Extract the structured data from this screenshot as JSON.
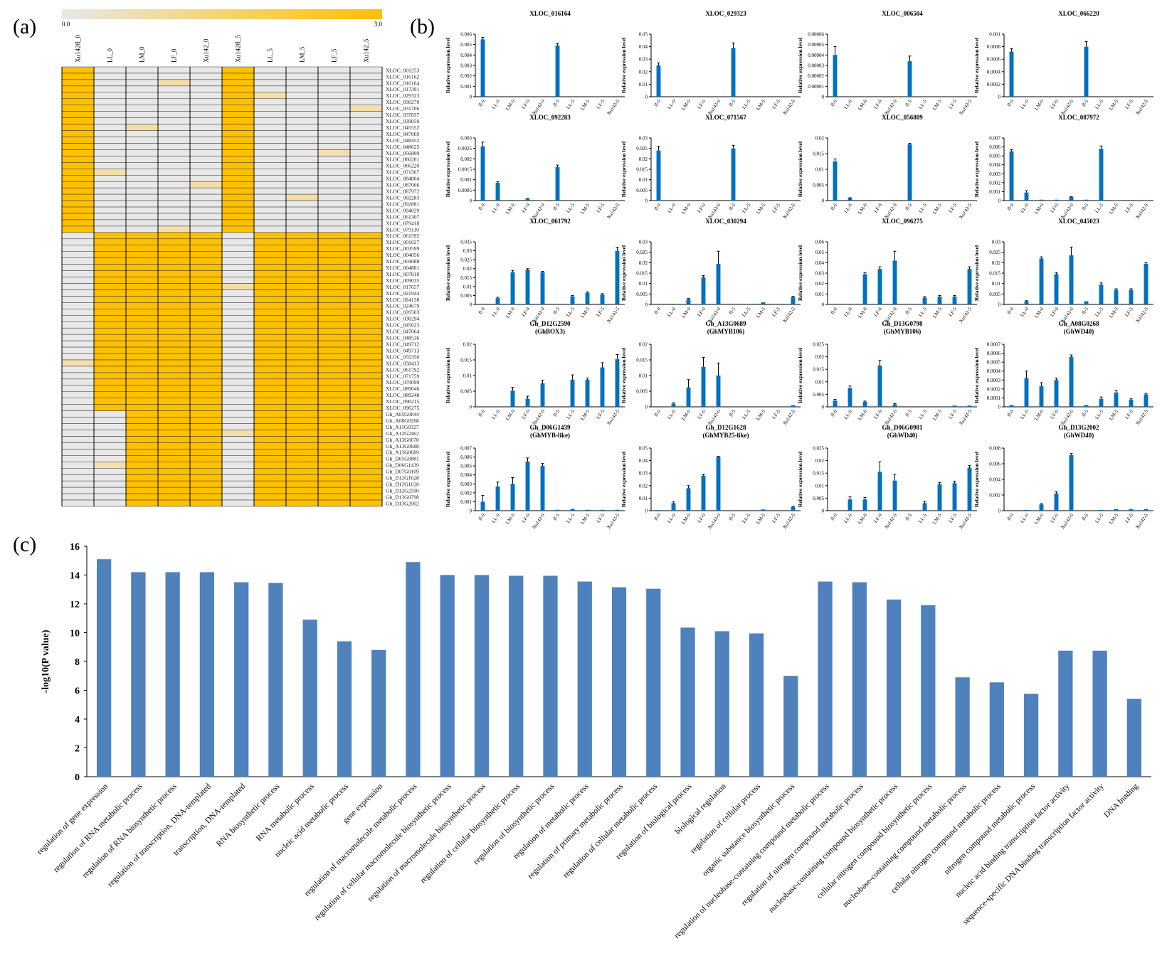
{
  "panel_labels": {
    "a": "(a)",
    "b": "(b)",
    "c": "(c)"
  },
  "colors": {
    "high": "#ffc000",
    "low": "#e8e8e8",
    "mid": "#f5dfa8",
    "bar_b": "#0070c0",
    "bar_c": "#4f81bd",
    "grid": "#000000"
  },
  "chart_data": [
    {
      "id": "heatmap",
      "type": "heatmap",
      "colorbar": {
        "min_label": "0.0",
        "max_label": "3.0",
        "min": 0,
        "max": 3
      },
      "columns": [
        "Xu142fl_0",
        "LL_0",
        "LM_0",
        "LF_0",
        "Xu142_0",
        "Xu142fl_5",
        "LL_5",
        "LM_5",
        "LF_5",
        "Xu142_5"
      ],
      "rows": [
        "XLOC_001253",
        "XLOC_016162",
        "XLOC_016164",
        "XLOC_017391",
        "XLOC_029323",
        "XLOC_030270",
        "XLOC_031706",
        "XLOC_037837",
        "XLOC_039050",
        "XLOC_045552",
        "XLOC_047069",
        "XLOC_048452",
        "XLOC_048625",
        "XLOC_056809",
        "XLOC_060281",
        "XLOC_066220",
        "XLOC_071567",
        "XLOC_084804",
        "XLOC_087066",
        "XLOC_087972",
        "XLOC_092283",
        "XLOC_092881",
        "XLOC_094029",
        "XLOC_061307",
        "XLOC_079418",
        "XLOC_079110",
        "XLOC_061592",
        "XLOC_001027",
        "XLOC_003599",
        "XLOC_004056",
        "XLOC_004088",
        "XLOC_004801",
        "XLOC_007810",
        "XLOC_009035",
        "XLOC_017657",
        "XLOC_021944",
        "XLOC_024138",
        "XLOC_024679",
        "XLOC_026503",
        "XLOC_030294",
        "XLOC_045023",
        "XLOC_047064",
        "XLOC_048536",
        "XLOC_049712",
        "XLOC_049713",
        "XLOC_055350",
        "XLOC_058413",
        "XLOC_061792",
        "XLOC_071759",
        "XLOC_079099",
        "XLOC_089046",
        "XLOC_089248",
        "XLOC_090215",
        "XLOC_096275",
        "Gh_A05G0844",
        "Gh_A08G0268",
        "Gh_A11G0327",
        "Gh_A12G2462",
        "Gh_A13G0670",
        "Gh_A13G0688",
        "Gh_A13G0689",
        "Gh_D05G0881",
        "Gh_D06G1439",
        "Gh_D07G0109",
        "Gh_D12G1628",
        "Gh_D12G1628",
        "Gh_D12G2590",
        "Gh_D13G0798",
        "Gh_D13G2002"
      ],
      "groups": [
        {
          "from": 0,
          "to": 25,
          "on": [
            0,
            5
          ]
        },
        {
          "from": 26,
          "to": 53,
          "on": [
            1,
            2,
            3,
            4,
            6,
            7,
            8,
            9
          ]
        },
        {
          "from": 54,
          "to": 68,
          "on": [
            2,
            3,
            4,
            6,
            7,
            8,
            9
          ]
        }
      ]
    },
    {
      "id": "qpcr",
      "type": "bar",
      "ylabel": "Relative expression level",
      "categories": [
        "fl-0",
        "LL-0",
        "LM-0",
        "LF-0",
        "Xu142-0",
        "fl-5",
        "LL-5",
        "LM-5",
        "LF-5",
        "Xu142-5"
      ],
      "panels": [
        {
          "title": "XLOC_016164",
          "subtitle": "",
          "ymax": 0.006,
          "ticks": [
            "0",
            "0.001",
            "0.002",
            "0.003",
            "0.004",
            "0.005",
            "0.006"
          ],
          "values": [
            0.0055,
            5e-05,
            0,
            0,
            0,
            0.0049,
            0,
            0,
            0,
            0
          ],
          "errors": [
            0.0002,
            0,
            0,
            0,
            0,
            0.0002,
            0,
            0,
            0,
            0
          ]
        },
        {
          "title": "XLOC_029323",
          "subtitle": "",
          "ymax": 0.05,
          "ticks": [
            "0",
            "0.01",
            "0.02",
            "0.03",
            "0.04",
            "0.05"
          ],
          "values": [
            0.025,
            0,
            0,
            0,
            0,
            0.039,
            0,
            0,
            0,
            0
          ],
          "errors": [
            0.002,
            0,
            0,
            0,
            0,
            0.004,
            0,
            0,
            0,
            0
          ]
        },
        {
          "title": "XLOC_006504",
          "subtitle": "",
          "ymax": 6e-05,
          "ticks": [
            "0",
            "0.00001",
            "0.00002",
            "0.00003",
            "0.00004",
            "0.00005",
            "0.00006"
          ],
          "values": [
            4e-05,
            0,
            0,
            0,
            0,
            3.4e-05,
            0,
            0,
            0,
            0
          ],
          "errors": [
            8e-06,
            0,
            0,
            0,
            0,
            5e-06,
            0,
            0,
            0,
            0
          ]
        },
        {
          "title": "XLOC_066220",
          "subtitle": "",
          "ymax": 0.001,
          "ticks": [
            "0",
            "0.0002",
            "0.0004",
            "0.0006",
            "0.0008",
            "0.001"
          ],
          "values": [
            0.00072,
            0,
            0,
            0,
            0,
            0.0008,
            0,
            0,
            0,
            0
          ],
          "errors": [
            5e-05,
            0,
            0,
            0,
            0,
            8e-05,
            0,
            0,
            0,
            0
          ]
        },
        {
          "title": "XLOC_092283",
          "subtitle": "",
          "ymax": 0.003,
          "ticks": [
            "0",
            "0.0005",
            "0.001",
            "0.0015",
            "0.002",
            "0.0025",
            "0.003"
          ],
          "values": [
            0.0026,
            0.00085,
            3e-05,
            8e-05,
            2e-05,
            0.0016,
            0,
            0,
            0,
            2e-05
          ],
          "errors": [
            0.0002,
            5e-05,
            0,
            2e-05,
            0,
            0.0001,
            0,
            0,
            0,
            0
          ]
        },
        {
          "title": "XLOC_071567",
          "subtitle": "",
          "ymax": 0.03,
          "ticks": [
            "0",
            "0.005",
            "0.01",
            "0.015",
            "0.02",
            "0.025",
            "0.03"
          ],
          "values": [
            0.024,
            0,
            0,
            0,
            0,
            0.025,
            0,
            0,
            0,
            0
          ],
          "errors": [
            0.002,
            0,
            0,
            0,
            0,
            0.0015,
            0,
            0,
            0,
            0
          ]
        },
        {
          "title": "XLOC_056809",
          "subtitle": "",
          "ymax": 0.02,
          "ticks": [
            "0",
            "0.005",
            "0.01",
            "0.015",
            "0.02"
          ],
          "values": [
            0.0125,
            0.0008,
            0,
            0,
            0,
            0.018,
            0,
            0,
            0,
            0
          ],
          "errors": [
            0.0008,
            0.0001,
            0,
            0,
            0,
            0.0003,
            0,
            0,
            0,
            0
          ]
        },
        {
          "title": "XLOC_087972",
          "subtitle": "",
          "ymax": 0.007,
          "ticks": [
            "0",
            "0.001",
            "0.002",
            "0.003",
            "0.004",
            "0.005",
            "0.006",
            "0.007"
          ],
          "values": [
            0.0055,
            0.0009,
            0.0001,
            0.0001,
            0.0004,
            0.0001,
            0.0058,
            5e-05,
            0,
            5e-05
          ],
          "errors": [
            0.0002,
            0.0002,
            0,
            0,
            5e-05,
            0,
            0.0003,
            0,
            0,
            0
          ]
        },
        {
          "title": "XLOC_061792",
          "subtitle": "",
          "ymax": 0.035,
          "ticks": [
            "0",
            "0.005",
            "0.01",
            "0.015",
            "0.02",
            "0.025",
            "0.03",
            "0.035"
          ],
          "values": [
            0,
            0.0035,
            0.018,
            0.0195,
            0.018,
            0,
            0.0045,
            0.0065,
            0.0055,
            0.03
          ],
          "errors": [
            0,
            0.0005,
            0.001,
            0.0005,
            0.0005,
            0,
            0.0005,
            0.0005,
            0.0005,
            0.002
          ]
        },
        {
          "title": "XLOC_030294",
          "subtitle": "",
          "ymax": 0.03,
          "ticks": [
            "0",
            "0.005",
            "0.01",
            "0.015",
            "0.02",
            "0.025",
            "0.03"
          ],
          "values": [
            0,
            0.0003,
            0.0025,
            0.013,
            0.0195,
            0,
            0,
            0.001,
            0,
            0.0035
          ],
          "errors": [
            0,
            0,
            0.0004,
            0.0008,
            0.006,
            0,
            0,
            0,
            0,
            0.0004
          ]
        },
        {
          "title": "XLOC_096275",
          "subtitle": "",
          "ymax": 0.06,
          "ticks": [
            "0",
            "0.01",
            "0.02",
            "0.03",
            "0.04",
            "0.05",
            "0.06"
          ],
          "values": [
            0,
            0.0005,
            0.029,
            0.034,
            0.042,
            0,
            0.0065,
            0.0075,
            0.0075,
            0.034
          ],
          "errors": [
            0,
            0,
            0.0015,
            0.002,
            0.009,
            0,
            0.001,
            0.001,
            0.001,
            0.002
          ]
        },
        {
          "title": "XLOC_045023",
          "subtitle": "",
          "ymax": 0.03,
          "ticks": [
            "0",
            "0.005",
            "0.01",
            "0.015",
            "0.02",
            "0.025",
            "0.03"
          ],
          "values": [
            0,
            0.0015,
            0.022,
            0.0145,
            0.0235,
            0.0015,
            0.0095,
            0.007,
            0.007,
            0.0195
          ],
          "errors": [
            0,
            0.0003,
            0.0008,
            0.0008,
            0.004,
            0,
            0.0008,
            0.0005,
            0.0005,
            0.0005
          ]
        },
        {
          "title": "Gh_D12G2590",
          "subtitle": "(GhBOX3)",
          "ymax": 0.02,
          "ticks": [
            "0",
            "0.005",
            "0.01",
            "0.015",
            "0.02"
          ],
          "values": [
            0,
            0,
            0.0052,
            0.0026,
            0.0075,
            0,
            0.0087,
            0.0087,
            0.0126,
            0.0152
          ],
          "errors": [
            0,
            0,
            0.001,
            0.0008,
            0.001,
            0,
            0.0015,
            0.0005,
            0.0015,
            0.0015
          ]
        },
        {
          "title": "Gh_A13G0689",
          "subtitle": "(GhMYB106)",
          "ymax": 0.02,
          "ticks": [
            "0",
            "0.005",
            "0.01",
            "0.015",
            "0.02"
          ],
          "values": [
            0,
            0.001,
            0.0062,
            0.0128,
            0.01,
            0,
            0,
            0,
            0,
            0.0005
          ],
          "errors": [
            0,
            0.0003,
            0.0025,
            0.003,
            0.004,
            0,
            0,
            0,
            0,
            0
          ]
        },
        {
          "title": "Gh_D13G0798",
          "subtitle": "(GhMYB106)",
          "ymax": 0.025,
          "ticks": [
            "0",
            "0.005",
            "0.01",
            "0.015",
            "0.02",
            "0.025"
          ],
          "values": [
            0.0025,
            0.0075,
            0.002,
            0.0165,
            0.001,
            0,
            0,
            0,
            0.0005,
            0.0005
          ],
          "errors": [
            0.0005,
            0.0008,
            0.0003,
            0.002,
            0.0003,
            0,
            0,
            0,
            0,
            0
          ]
        },
        {
          "title": "Gh_A08G0268",
          "subtitle": "(GhWD40)",
          "ymax": 0.0007,
          "ticks": [
            "0",
            "0.0001",
            "0.0002",
            "0.0003",
            "0.0004",
            "0.0005",
            "0.0006",
            "0.0007"
          ],
          "values": [
            2e-05,
            0.00032,
            0.00023,
            0.0003,
            0.00056,
            2e-05,
            9e-05,
            0.00016,
            8e-05,
            0.00014
          ],
          "errors": [
            0,
            8e-05,
            4e-05,
            2e-05,
            2e-05,
            0,
            2e-05,
            2e-05,
            1e-05,
            1e-05
          ]
        },
        {
          "title": "Gh_D06G1439",
          "subtitle": "(GhMYB-like)",
          "ymax": 0.007,
          "ticks": [
            "0",
            "0.001",
            "0.002",
            "0.003",
            "0.004",
            "0.005",
            "0.006",
            "0.007"
          ],
          "values": [
            0.001,
            0.0027,
            0.003,
            0.0055,
            0.005,
            0.0001,
            0.0002,
            0.0001,
            0.0001,
            0.0001
          ],
          "errors": [
            0.0007,
            0.0005,
            0.0007,
            0.0004,
            0.0003,
            0,
            0,
            0,
            0,
            0
          ]
        },
        {
          "title": "Gh_D12G1628",
          "subtitle": "(GhMYB25-like)",
          "ymax": 0.05,
          "ticks": [
            "0",
            "0.01",
            "0.02",
            "0.03",
            "0.04",
            "0.05"
          ],
          "values": [
            0.0005,
            0.006,
            0.018,
            0.028,
            0.043,
            0,
            0,
            0.001,
            0,
            0.003
          ],
          "errors": [
            0,
            0.001,
            0.002,
            0.001,
            0.0005,
            0,
            0,
            0,
            0,
            0.0005
          ]
        },
        {
          "title": "Gh_D06G0981",
          "subtitle": "(GhWD40)",
          "ymax": 0.025,
          "ticks": [
            "0",
            "0.005",
            "0.01",
            "0.015",
            "0.02",
            "0.025"
          ],
          "values": [
            0,
            0.0045,
            0.0045,
            0.0155,
            0.012,
            0,
            0.003,
            0.0105,
            0.011,
            0.0172
          ],
          "errors": [
            0,
            0.001,
            0.0008,
            0.004,
            0.0025,
            0,
            0.0008,
            0.0008,
            0.0008,
            0.0008
          ]
        },
        {
          "title": "Gh_D13G2002",
          "subtitle": "(GhWD40)",
          "ymax": 0.008,
          "ticks": [
            "0",
            "0.002",
            "0.004",
            "0.006",
            "0.008"
          ],
          "values": [
            0,
            0.0001,
            0.0008,
            0.0022,
            0.0071,
            0,
            0.0001,
            0.0002,
            0.0002,
            0.0002
          ],
          "errors": [
            0,
            0,
            0.0001,
            0.0002,
            0.0002,
            0,
            0,
            0,
            0,
            0
          ]
        }
      ]
    },
    {
      "id": "go",
      "type": "bar",
      "ylabel": "-log10(P value)",
      "ylim": [
        0,
        16
      ],
      "yticks": [
        "0",
        "2",
        "4",
        "6",
        "8",
        "10",
        "12",
        "14",
        "16"
      ],
      "categories": [
        "regulation of gene expression",
        "regulation of RNA metabolic process",
        "regulation of RNA biosynthetic process",
        "regulation of transcription, DNA-templated",
        "transcription, DNA-templated",
        "RNA biosynthetic process",
        "RNA metabolic process",
        "nucleic acid metabolic process",
        "gene expression",
        "regulation of macromolecule metabolic process",
        "regulation of cellular macromolecule biosynthetic process",
        "regulation of macromolecule biosynthetic process",
        "regulation of cellular biosynthetic process",
        "regulation of biosynthetic process",
        "regulation of metabolic process",
        "regulation of primary metabolic process",
        "regulation of cellular metabolic process",
        "regulation of biological process",
        "biological regulation",
        "regulation of cellular process",
        "organic substance biosynthetic process",
        "regulation of nucleobase-containing compound metabolic process",
        "regulation of nitrogen compound metabolic process",
        "nucleobase-containing compound biosynthetic process",
        "cellular nitrogen compound biosynthetic process",
        "nucleobase-containing compound metabolic process",
        "cellular nitrogen compound metabolic process",
        "nitrogen compound metabolic process",
        "nucleic acid binding transcription factor activity",
        "sequence-specific DNA binding transcription factor activity",
        "DNA binding"
      ],
      "values": [
        15.1,
        14.2,
        14.2,
        14.2,
        13.5,
        13.45,
        10.9,
        9.4,
        8.8,
        14.9,
        14.0,
        14.0,
        13.95,
        13.95,
        13.55,
        13.15,
        13.05,
        10.35,
        10.1,
        9.95,
        7.0,
        13.55,
        13.5,
        12.3,
        11.9,
        6.9,
        6.55,
        5.75,
        8.75,
        8.75,
        5.4
      ]
    }
  ]
}
